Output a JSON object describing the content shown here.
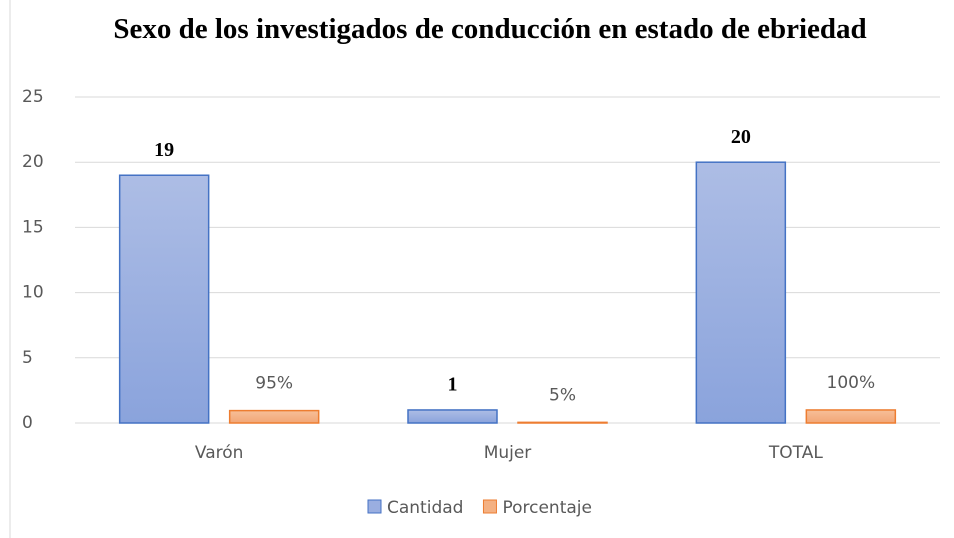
{
  "chart_data": {
    "type": "bar",
    "title": "Sexo de los investigados  de conducción en estado de ebriedad",
    "categories": [
      "Varón",
      "Mujer",
      "TOTAL"
    ],
    "series": [
      {
        "name": "Cantidad",
        "color": "#9aaee0",
        "values": [
          19,
          1,
          20
        ],
        "value_labels": [
          "19",
          "1",
          "20"
        ]
      },
      {
        "name": "Porcentaje",
        "color": "#f4b183",
        "values": [
          0.95,
          0.05,
          1
        ],
        "value_labels": [
          "95%",
          "5%",
          "100%"
        ]
      }
    ],
    "ylim": [
      0,
      25
    ],
    "yticks": [
      0,
      5,
      10,
      15,
      20,
      25
    ],
    "grid": true,
    "legend": "bottom"
  }
}
